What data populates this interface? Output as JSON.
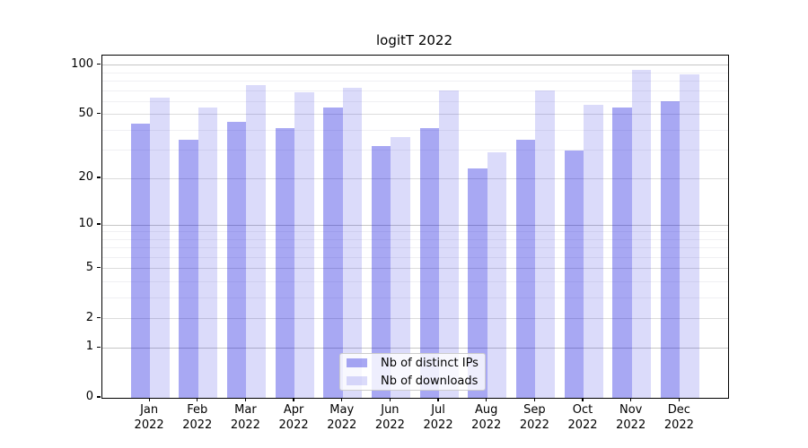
{
  "title": "logitT 2022",
  "chart_data": {
    "type": "bar",
    "title": "logitT 2022",
    "x_categories": [
      "Jan",
      "Feb",
      "Mar",
      "Apr",
      "May",
      "Jun",
      "Jul",
      "Aug",
      "Sep",
      "Oct",
      "Nov",
      "Dec"
    ],
    "x_year": "2022",
    "series": [
      {
        "name": "Nb of distinct IPs",
        "color": "rgba(0,0,220,0.34)",
        "values": [
          44,
          35,
          45,
          41,
          55,
          32,
          41,
          23,
          35,
          30,
          55,
          60
        ]
      },
      {
        "name": "Nb of downloads",
        "color": "rgba(0,0,220,0.14)",
        "values": [
          63,
          55,
          76,
          68,
          73,
          36,
          70,
          29,
          70,
          57,
          93,
          88
        ]
      }
    ],
    "y_scale": "log(1+x)",
    "y_ticks": [
      0,
      1,
      2,
      5,
      10,
      20,
      50,
      100
    ],
    "y_decade_ticks": [
      1,
      10,
      100
    ],
    "y_minor_ticks": [
      3,
      4,
      6,
      7,
      8,
      9,
      30,
      40,
      60,
      70,
      80,
      90
    ],
    "ylim_top_value": 115,
    "grid": true,
    "legend_position": "lower center",
    "bar_width_units": 0.4
  },
  "colors": {
    "grid_major": "#dcdcdc",
    "grid_decade": "#c6c6c6",
    "grid_minor": "#f0f0f3",
    "spine": "#000000"
  }
}
